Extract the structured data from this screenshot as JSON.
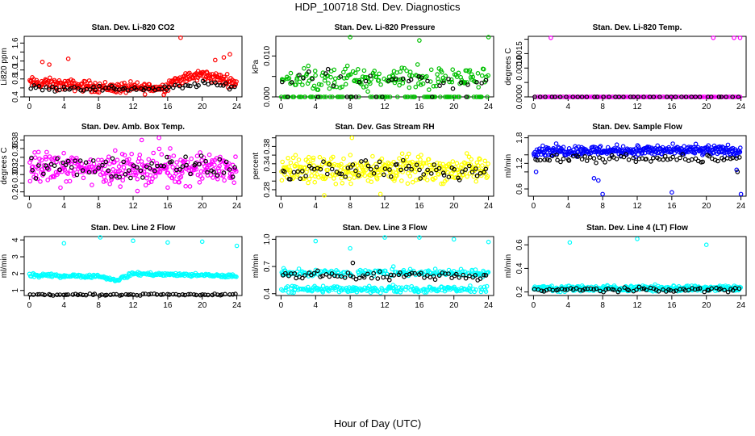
{
  "title": "HDP_100718  Std. Dev. Diagnostics",
  "xlabel": "Hour of Day (UTC)",
  "chart_data": [
    {
      "type": "scatter",
      "title": "Stan. Dev. Li-820 CO2",
      "ylabel": "Li820 ppm",
      "xlim": [
        0,
        24
      ],
      "ylim": [
        0.4,
        1.75
      ],
      "xticks": [
        0,
        4,
        8,
        12,
        16,
        20,
        24
      ],
      "yticks": [
        0.4,
        0.6,
        0.8,
        1.0,
        1.2,
        1.4,
        1.6
      ],
      "ytick_labels": [
        "0.4",
        "",
        "0.8",
        "1.0",
        "1.2",
        "",
        "1.6"
      ],
      "grid": false,
      "series": [
        {
          "color": "#ff0000",
          "n": 300,
          "base": 0.62,
          "spread": 0.1,
          "drift": [
            [
              0,
              0.72
            ],
            [
              5,
              0.66
            ],
            [
              10,
              0.6
            ],
            [
              15.8,
              0.6
            ],
            [
              16.2,
              0.72
            ],
            [
              20,
              0.9
            ],
            [
              24,
              0.72
            ]
          ],
          "outliers": [
            [
              17.5,
              1.72
            ],
            [
              4.5,
              1.25
            ],
            [
              1.5,
              1.18
            ],
            [
              21.5,
              1.22
            ],
            [
              23.2,
              1.35
            ],
            [
              22.5,
              1.28
            ],
            [
              2.3,
              1.12
            ]
          ]
        },
        {
          "color": "#000000",
          "n": 70,
          "base": 0.6,
          "spread": 0.05,
          "drift": [
            [
              0,
              0.6
            ],
            [
              16,
              0.58
            ],
            [
              20,
              0.7
            ],
            [
              24,
              0.62
            ]
          ],
          "outliers": []
        }
      ]
    },
    {
      "type": "scatter",
      "title": "Stan. Dev. Li-820 Pressure",
      "ylabel": "kPa",
      "xlim": [
        0,
        24
      ],
      "ylim": [
        0,
        0.0148
      ],
      "xticks": [
        0,
        4,
        8,
        12,
        16,
        20,
        24
      ],
      "yticks": [
        0,
        0.005,
        0.01
      ],
      "ytick_labels": [
        "0.000",
        "",
        "0.010"
      ],
      "grid": false,
      "series": [
        {
          "color": "#00c000",
          "n": 260,
          "base": 0.0045,
          "spread": 0.0022,
          "drift": [],
          "zero_fraction": 0.3,
          "outliers": [
            [
              8,
              0.0146
            ],
            [
              16,
              0.0138
            ],
            [
              24,
              0.0146
            ]
          ]
        },
        {
          "color": "#000000",
          "n": 40,
          "base": 0.004,
          "spread": 0.0018,
          "drift": [],
          "zero_fraction": 0.4,
          "outliers": []
        }
      ]
    },
    {
      "type": "scatter",
      "title": "Stan. Dev. Li-820 Temp.",
      "ylabel": "degrees C",
      "xlim": [
        0,
        24
      ],
      "ylim": [
        0,
        0.0021
      ],
      "xticks": [
        0,
        4,
        8,
        12,
        16,
        20,
        24
      ],
      "yticks": [
        0,
        0.0005,
        0.001,
        0.0015,
        0.002
      ],
      "ytick_labels": [
        "0.0000",
        "",
        "0.0010",
        "0.0015",
        ""
      ],
      "grid": false,
      "series": [
        {
          "color": "#ff00ff",
          "n": 120,
          "base": 0,
          "spread": 0,
          "drift": [],
          "outliers": [
            [
              2,
              0.00205
            ],
            [
              20.8,
              0.00205
            ],
            [
              23.2,
              0.00205
            ],
            [
              23.9,
              0.00205
            ]
          ]
        },
        {
          "color": "#000000",
          "n": 40,
          "base": 0,
          "spread": 0,
          "drift": [],
          "outliers": []
        }
      ]
    },
    {
      "type": "scatter",
      "title": "Stan. Dev. Amb. Box Temp.",
      "ylabel": "degrees C",
      "xlim": [
        0,
        24
      ],
      "ylim": [
        0.25,
        0.39
      ],
      "xticks": [
        0,
        4,
        8,
        12,
        16,
        20,
        24
      ],
      "yticks": [
        0.26,
        0.28,
        0.3,
        0.32,
        0.34,
        0.36,
        0.38
      ],
      "ytick_labels": [
        "0.26",
        "",
        "0.30",
        "0.32",
        "",
        "0.36",
        "0.38"
      ],
      "grid": false,
      "series": [
        {
          "color": "#ff00ff",
          "n": 330,
          "base": 0.315,
          "spread": 0.028,
          "drift": [],
          "outliers": [
            [
              13,
              0.38
            ],
            [
              15,
              0.385
            ],
            [
              12.5,
              0.262
            ],
            [
              16,
              0.27
            ]
          ]
        },
        {
          "color": "#000000",
          "n": 70,
          "base": 0.315,
          "spread": 0.022,
          "drift": [],
          "outliers": []
        }
      ]
    },
    {
      "type": "scatter",
      "title": "Stan. Dev. Gas Stream RH",
      "ylabel": "percent",
      "xlim": [
        0,
        24
      ],
      "ylim": [
        0.265,
        0.405
      ],
      "xticks": [
        0,
        4,
        8,
        12,
        16,
        20,
        24
      ],
      "yticks": [
        0.28,
        0.3,
        0.32,
        0.34,
        0.36,
        0.38,
        0.4
      ],
      "ytick_labels": [
        "0.28",
        "",
        "",
        "0.34",
        "",
        "0.38",
        ""
      ],
      "grid": false,
      "series": [
        {
          "color": "#ffff00",
          "n": 330,
          "base": 0.327,
          "spread": 0.025,
          "drift": [],
          "outliers": [
            [
              8.2,
              0.4
            ],
            [
              5,
              0.267
            ],
            [
              11.5,
              0.27
            ]
          ]
        },
        {
          "color": "#000000",
          "n": 70,
          "base": 0.325,
          "spread": 0.018,
          "drift": [],
          "outliers": []
        }
      ]
    },
    {
      "type": "scatter",
      "title": "Stan. Dev. Sample Flow",
      "ylabel": "ml/min",
      "xlim": [
        0,
        24
      ],
      "ylim": [
        0.43,
        1.85
      ],
      "xticks": [
        0,
        4,
        8,
        12,
        16,
        20,
        24
      ],
      "yticks": [
        0.6,
        1.0,
        1.2,
        1.4,
        1.8
      ],
      "ytick_labels": [
        "0.6",
        "",
        "1.2",
        "",
        "1.8"
      ],
      "grid": false,
      "series": [
        {
          "color": "#0000ff",
          "n": 330,
          "base": 1.5,
          "spread": 0.1,
          "drift": [],
          "outliers": [
            [
              8,
              0.48
            ],
            [
              16,
              0.52
            ],
            [
              24,
              0.48
            ],
            [
              7,
              0.85
            ],
            [
              7.5,
              0.8
            ],
            [
              0.3,
              1.0
            ],
            [
              23.5,
              1.05
            ]
          ]
        },
        {
          "color": "#000000",
          "n": 70,
          "base": 1.3,
          "spread": 0.08,
          "drift": [],
          "outliers": [
            [
              23.6,
              1.0
            ]
          ]
        }
      ]
    },
    {
      "type": "scatter",
      "title": "Stan. Dev. Line 2 Flow",
      "ylabel": "ml/min",
      "xlim": [
        0,
        24
      ],
      "ylim": [
        0.7,
        4.2
      ],
      "xticks": [
        0,
        4,
        8,
        12,
        16,
        20,
        24
      ],
      "yticks": [
        1,
        2,
        3,
        4
      ],
      "ytick_labels": [
        "1",
        "2",
        "3",
        "4"
      ],
      "grid": false,
      "series": [
        {
          "color": "#00ffff",
          "n": 230,
          "base": 1.8,
          "spread": 0.08,
          "drift": [
            [
              0,
              1.9
            ],
            [
              8,
              1.85
            ],
            [
              10,
              1.6
            ],
            [
              12,
              2.0
            ],
            [
              24,
              1.85
            ]
          ],
          "outliers": [
            [
              4,
              3.8
            ],
            [
              8.2,
              4.15
            ],
            [
              12,
              3.95
            ],
            [
              16,
              3.85
            ],
            [
              20,
              3.9
            ],
            [
              24,
              3.65
            ]
          ]
        },
        {
          "color": "#000000",
          "n": 70,
          "base": 0.75,
          "spread": 0.04,
          "drift": [],
          "outliers": []
        }
      ]
    },
    {
      "type": "scatter",
      "title": "Stan. Dev. Line 3 Flow",
      "ylabel": "ml/min",
      "xlim": [
        0,
        24
      ],
      "ylim": [
        0.38,
        1.03
      ],
      "xticks": [
        0,
        4,
        8,
        12,
        16,
        20,
        24
      ],
      "yticks": [
        0.4,
        0.7,
        1.0
      ],
      "ytick_labels": [
        "0.4",
        "0.7",
        "1.0"
      ],
      "grid": false,
      "series": [
        {
          "color": "#00ffff",
          "n": 380,
          "base": 0.55,
          "spread": 0.05,
          "bands": [
            0.45,
            0.63
          ],
          "drift": [],
          "outliers": [
            [
              4,
              0.98
            ],
            [
              8,
              0.9
            ],
            [
              12,
              1.02
            ],
            [
              16,
              1.02
            ],
            [
              20,
              1.0
            ],
            [
              24,
              0.97
            ],
            [
              0.3,
              0.68
            ],
            [
              13,
              0.7
            ]
          ]
        },
        {
          "color": "#000000",
          "n": 70,
          "base": 0.6,
          "spread": 0.04,
          "drift": [],
          "outliers": [
            [
              8.3,
              0.74
            ]
          ]
        }
      ]
    },
    {
      "type": "scatter",
      "title": "Stan. Dev. Line 4 (LT) Flow",
      "ylabel": "ml/min",
      "xlim": [
        0,
        24
      ],
      "ylim": [
        0.17,
        0.67
      ],
      "xticks": [
        0,
        4,
        8,
        12,
        16,
        20,
        24
      ],
      "yticks": [
        0.2,
        0.4,
        0.6
      ],
      "ytick_labels": [
        "0.2",
        "0.4",
        "0.6"
      ],
      "grid": false,
      "series": [
        {
          "color": "#00ffff",
          "n": 330,
          "base": 0.23,
          "spread": 0.02,
          "drift": [],
          "outliers": [
            [
              4.2,
              0.62
            ],
            [
              12,
              0.65
            ],
            [
              20,
              0.6
            ]
          ]
        },
        {
          "color": "#000000",
          "n": 70,
          "base": 0.22,
          "spread": 0.015,
          "drift": [],
          "outliers": []
        }
      ]
    }
  ]
}
